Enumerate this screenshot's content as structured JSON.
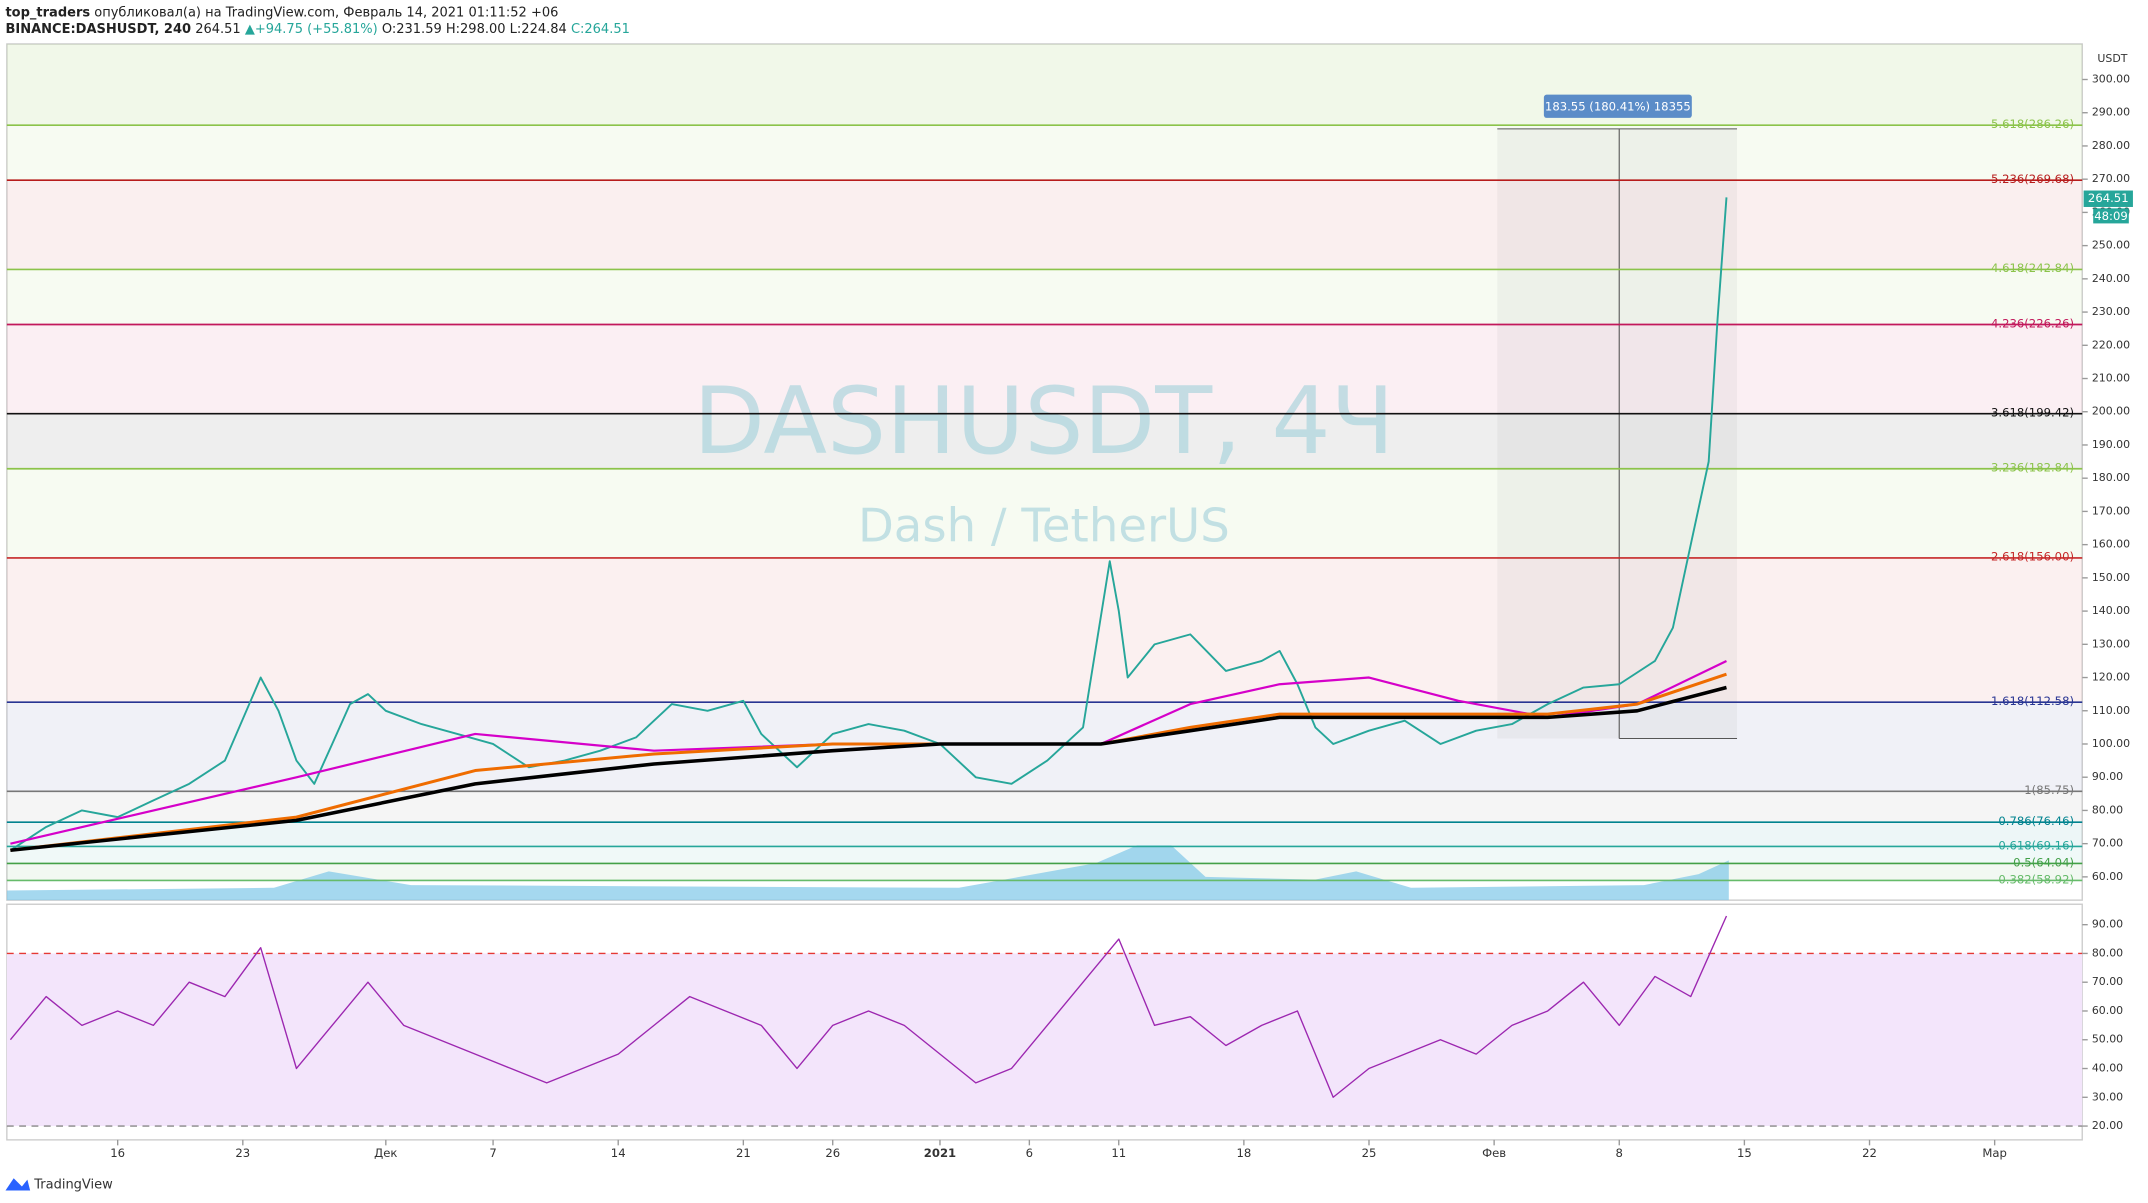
{
  "header": {
    "publisher": "top_traders",
    "published_text": "опубликовал(а) на TradingView.com, Февраль 14, 2021 01:11:52 +06",
    "symbol": "BINANCE:DASHUSDT, 240",
    "last": "264.51",
    "change": "+94.75 (+55.81%)",
    "open": "O:231.59",
    "high": "H:298.00",
    "low": "L:224.84",
    "close": "C:264.51",
    "currency": "USDT",
    "countdown": "48:09"
  },
  "watermark": {
    "title": "DASHUSDT, 4Ч",
    "subtitle": "Dash / TetherUS"
  },
  "measure": {
    "label": "183.55 (180.41%) 18355"
  },
  "footer": {
    "brand": "TradingView"
  },
  "chart_data": [
    {
      "type": "line",
      "xlim": [
        -6.2,
        109.9
      ],
      "xticks": [
        {
          "value": 0,
          "label": "16"
        },
        {
          "value": 7,
          "label": "23"
        },
        {
          "value": 15,
          "label": "Дек"
        },
        {
          "value": 21,
          "label": "7"
        },
        {
          "value": 28,
          "label": "14"
        },
        {
          "value": 35,
          "label": "21"
        },
        {
          "value": 40,
          "label": "26"
        },
        {
          "value": 46,
          "label": "2021"
        },
        {
          "value": 51,
          "label": "6"
        },
        {
          "value": 56,
          "label": "11"
        },
        {
          "value": 63,
          "label": "18"
        },
        {
          "value": 70,
          "label": "25"
        },
        {
          "value": 77,
          "label": "Фев"
        },
        {
          "value": 84,
          "label": "8"
        },
        {
          "value": 91,
          "label": "15"
        },
        {
          "value": 98,
          "label": "22"
        },
        {
          "value": 105,
          "label": "Мар"
        }
      ],
      "ylim": [
        53,
        310.7
      ],
      "yticks": [
        {
          "value": 60,
          "label": "60.00"
        },
        {
          "value": 70,
          "label": "70.00"
        },
        {
          "value": 80,
          "label": "80.00"
        },
        {
          "value": 90,
          "label": "90.00"
        },
        {
          "value": 100,
          "label": "100.00"
        },
        {
          "value": 110,
          "label": "110.00"
        },
        {
          "value": 120,
          "label": "120.00"
        },
        {
          "value": 130,
          "label": "130.00"
        },
        {
          "value": 140,
          "label": "140.00"
        },
        {
          "value": 150,
          "label": "150.00"
        },
        {
          "value": 160,
          "label": "160.00"
        },
        {
          "value": 170,
          "label": "170.00"
        },
        {
          "value": 180,
          "label": "180.00"
        },
        {
          "value": 190,
          "label": "190.00"
        },
        {
          "value": 200,
          "label": "200.00"
        },
        {
          "value": 210,
          "label": "210.00"
        },
        {
          "value": 220,
          "label": "220.00"
        },
        {
          "value": 230,
          "label": "230.00"
        },
        {
          "value": 240,
          "label": "240.00"
        },
        {
          "value": 250,
          "label": "250.00"
        },
        {
          "value": 260,
          "label": "260.00"
        },
        {
          "value": 270,
          "label": "270.00"
        },
        {
          "value": 280,
          "label": "280.00"
        },
        {
          "value": 290,
          "label": "290.00"
        },
        {
          "value": 300,
          "label": "300.00"
        }
      ],
      "levels": [
        {
          "label": "5.618(286.26)",
          "value": 286.26,
          "color": "#8bc34a"
        },
        {
          "label": "5.236(269.68)",
          "value": 269.68,
          "color": "#b71c1c"
        },
        {
          "label": "4.618(242.84)",
          "value": 242.84,
          "color": "#8bc34a"
        },
        {
          "label": "4.236(226.26)",
          "value": 226.26,
          "color": "#c2185b"
        },
        {
          "label": "3.618(199.42)",
          "value": 199.42,
          "color": "#111111"
        },
        {
          "label": "3.236(182.84)",
          "value": 182.84,
          "color": "#8bc34a"
        },
        {
          "label": "2.618(156.00)",
          "value": 156.0,
          "color": "#c62828"
        },
        {
          "label": "1.618(112.58)",
          "value": 112.58,
          "color": "#283593"
        },
        {
          "label": "1(85.75)",
          "value": 85.75,
          "color": "#777777"
        },
        {
          "label": "0.786(76.46)",
          "value": 76.46,
          "color": "#00838f"
        },
        {
          "label": "0.618(69.16)",
          "value": 69.16,
          "color": "#26a69a"
        },
        {
          "label": "0.5(64.04)",
          "value": 64.04,
          "color": "#43a047"
        },
        {
          "label": "0.382(58.92)",
          "value": 58.92,
          "color": "#66bb6a"
        }
      ],
      "series": [
        {
          "color": "#26a69a",
          "width": 1.4,
          "x": [
            -6,
            -4,
            -2,
            0,
            2,
            4,
            6,
            8,
            9,
            10,
            11,
            12,
            13,
            14,
            15,
            17,
            19,
            21,
            23,
            25,
            27,
            29,
            31,
            33,
            35,
            36,
            38,
            40,
            42,
            44,
            46,
            48,
            50,
            52,
            54,
            55.5,
            56,
            56.5,
            58,
            60,
            62,
            64,
            65,
            66,
            67,
            68,
            70,
            72,
            74,
            76,
            78,
            80,
            82,
            84,
            86,
            87,
            88,
            89,
            89.5,
            90
          ],
          "values": [
            68,
            75,
            80,
            78,
            83,
            88,
            95,
            120,
            110,
            95,
            88,
            100,
            112,
            115,
            110,
            106,
            103,
            100,
            93,
            95,
            98,
            102,
            112,
            110,
            113,
            103,
            93,
            103,
            106,
            104,
            100,
            90,
            88,
            95,
            105,
            155,
            140,
            120,
            130,
            133,
            122,
            125,
            128,
            118,
            105,
            100,
            104,
            107,
            100,
            104,
            106,
            112,
            117,
            118,
            125,
            135,
            160,
            185,
            228,
            264.51
          ]
        },
        {
          "color": "#d500c9",
          "width": 1.6,
          "x": [
            -6,
            10,
            20,
            30,
            40,
            46,
            55,
            60,
            65,
            70,
            75,
            80,
            85,
            90
          ],
          "values": [
            70,
            90,
            103,
            98,
            100,
            100,
            100,
            112,
            118,
            120,
            113,
            108,
            112,
            125
          ]
        },
        {
          "color": "#ef6c00",
          "width": 2.2,
          "x": [
            -6,
            10,
            20,
            30,
            40,
            46,
            55,
            60,
            65,
            70,
            75,
            80,
            85,
            90
          ],
          "values": [
            68,
            78,
            92,
            97,
            100,
            100,
            100,
            105,
            109,
            109,
            109,
            109,
            112,
            121
          ]
        },
        {
          "color": "#000000",
          "width": 2.6,
          "x": [
            -6,
            10,
            20,
            30,
            40,
            46,
            55,
            60,
            65,
            70,
            75,
            80,
            85,
            90
          ],
          "values": [
            68,
            77,
            88,
            94,
            98,
            100,
            100,
            104,
            108,
            108,
            108,
            108,
            110,
            117
          ]
        }
      ]
    },
    {
      "type": "line",
      "xlim": [
        -6.2,
        109.9
      ],
      "ylim": [
        15.2,
        97.1
      ],
      "yticks": [
        {
          "value": 20,
          "label": "20.00"
        },
        {
          "value": 30,
          "label": "30.00"
        },
        {
          "value": 40,
          "label": "40.00"
        },
        {
          "value": 50,
          "label": "50.00"
        },
        {
          "value": 60,
          "label": "60.00"
        },
        {
          "value": 70,
          "label": "70.00"
        },
        {
          "value": 80,
          "label": "80.00"
        },
        {
          "value": 90,
          "label": "90.00"
        }
      ],
      "bands": [
        {
          "value": 80,
          "color": "#e53935"
        },
        {
          "value": 20,
          "color": "#888888"
        }
      ],
      "band_fill": "#f3e5fb",
      "series": [
        {
          "color": "#9c27b0",
          "width": 1,
          "x": [
            -6,
            -4,
            -2,
            0,
            2,
            4,
            6,
            8,
            10,
            12,
            14,
            16,
            18,
            20,
            22,
            24,
            26,
            28,
            30,
            32,
            34,
            36,
            38,
            40,
            42,
            44,
            46,
            48,
            50,
            52,
            54,
            56,
            58,
            60,
            62,
            64,
            66,
            68,
            70,
            72,
            74,
            76,
            78,
            80,
            82,
            84,
            86,
            88,
            90
          ],
          "values": [
            50,
            65,
            55,
            60,
            55,
            70,
            65,
            82,
            40,
            55,
            70,
            55,
            50,
            45,
            40,
            35,
            40,
            45,
            55,
            65,
            60,
            55,
            40,
            55,
            60,
            55,
            45,
            35,
            40,
            55,
            70,
            85,
            55,
            58,
            48,
            55,
            60,
            30,
            40,
            45,
            50,
            45,
            55,
            60,
            70,
            55,
            72,
            65,
            93
          ]
        }
      ]
    }
  ]
}
